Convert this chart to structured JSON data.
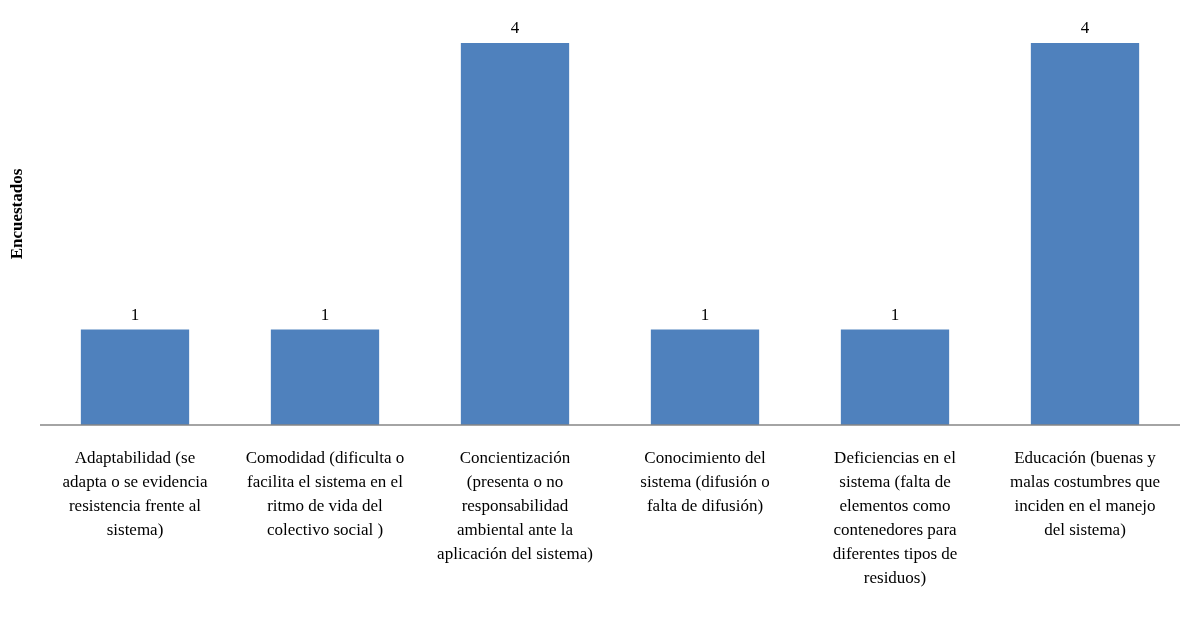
{
  "chart_data": {
    "type": "bar",
    "ylabel": "Encuestados",
    "categories": [
      "Adaptabilidad (se adapta o se evidencia resistencia frente al sistema)",
      "Comodidad (dificulta o facilita el sistema en el ritmo de vida del colectivo social )",
      "Concientización (presenta o no responsabilidad ambiental ante la aplicación del sistema)",
      "Conocimiento del sistema (difusión o falta de difusión)",
      "Deficiencias en el sistema (falta de elementos como contenedores para diferentes tipos de residuos)",
      "Educación (buenas y malas costumbres que inciden en el manejo del sistema)"
    ],
    "values": [
      1,
      1,
      4,
      1,
      1,
      4
    ],
    "color": "#4f81bd",
    "data_labels": true
  }
}
